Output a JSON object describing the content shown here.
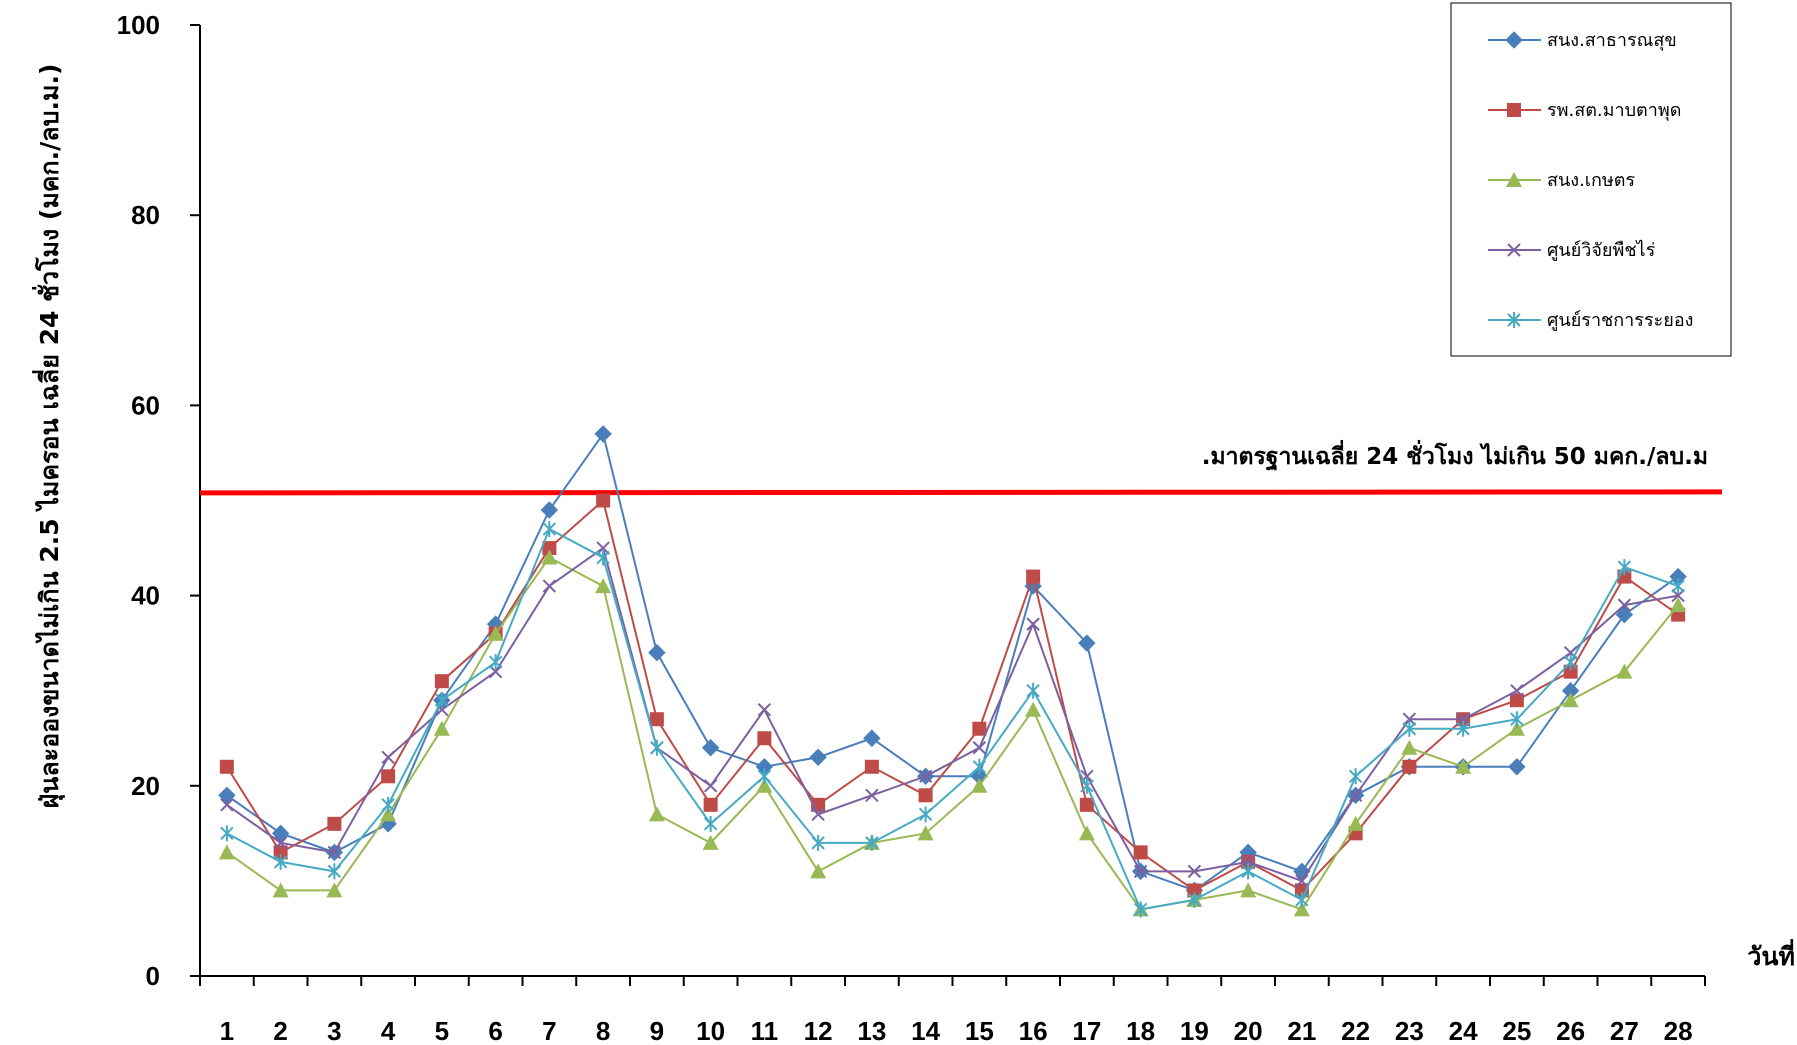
{
  "chart_data": {
    "type": "line",
    "xlabel": "วันที่",
    "ylabel": "ฝุ่นละอองขนาดไม่เกิน 2.5 ไมครอน เฉลี่ย 24 ชั่วโมง (มคก./ลบ.ม.)",
    "ylim": [
      0,
      100
    ],
    "yticks": [
      0,
      20,
      40,
      60,
      80,
      100
    ],
    "grid": false,
    "legend_position": "top-right",
    "x": [
      1,
      2,
      3,
      4,
      5,
      6,
      7,
      8,
      9,
      10,
      11,
      12,
      13,
      14,
      15,
      16,
      17,
      18,
      19,
      20,
      21,
      22,
      23,
      24,
      25,
      26,
      27,
      28
    ],
    "series": [
      {
        "name": "สนง.สาธารณสุข",
        "color": "#4a7ebb",
        "marker": "diamond",
        "values": [
          19,
          15,
          13,
          16,
          29,
          37,
          49,
          57,
          34,
          24,
          22,
          23,
          25,
          21,
          21,
          41,
          35,
          11,
          9,
          13,
          11,
          19,
          22,
          22,
          22,
          30,
          38,
          42
        ]
      },
      {
        "name": "รพ.สต.มาบตาพุด",
        "color": "#be4b48",
        "marker": "square",
        "values": [
          22,
          13,
          16,
          21,
          31,
          36,
          45,
          50,
          27,
          18,
          25,
          18,
          22,
          19,
          26,
          42,
          18,
          13,
          9,
          12,
          9,
          15,
          22,
          27,
          29,
          32,
          42,
          38
        ]
      },
      {
        "name": "สนง.เกษตร",
        "color": "#98b954",
        "marker": "triangle",
        "values": [
          13,
          9,
          9,
          17,
          26,
          36,
          44,
          41,
          17,
          14,
          20,
          11,
          14,
          15,
          20,
          28,
          15,
          7,
          8,
          9,
          7,
          16,
          24,
          22,
          26,
          29,
          32,
          39
        ]
      },
      {
        "name": "ศูนย์วิจัยพืชไร่",
        "color": "#7d60a0",
        "marker": "x",
        "values": [
          18,
          14,
          13,
          23,
          28,
          32,
          41,
          45,
          24,
          20,
          28,
          17,
          19,
          21,
          24,
          37,
          21,
          11,
          11,
          12,
          10,
          19,
          27,
          27,
          30,
          34,
          39,
          40
        ]
      },
      {
        "name": "ศูนย์ราชการระยอง",
        "color": "#46aac5",
        "marker": "star",
        "values": [
          15,
          12,
          11,
          18,
          29,
          33,
          47,
          44,
          24,
          16,
          21,
          14,
          14,
          17,
          22,
          30,
          20,
          7,
          8,
          11,
          8,
          21,
          26,
          26,
          27,
          33,
          43,
          41
        ]
      }
    ],
    "reference_line": {
      "value": 50.8,
      "color": "#ff0000",
      "label": ".มาตรฐานเฉลี่ย 24 ชั่วโมง ไม่เกิน 50 มคก./ลบ.ม"
    }
  }
}
